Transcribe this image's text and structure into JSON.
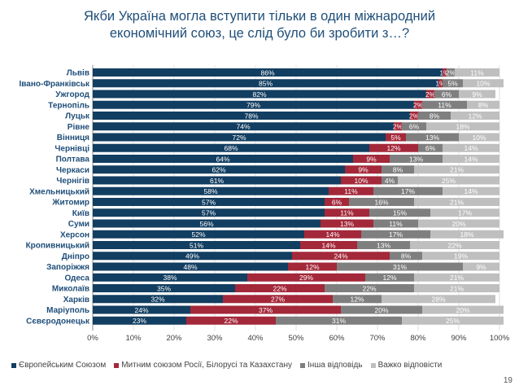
{
  "title_line1": "Якби Україна могла вступити тільки в один міжнародний",
  "title_line2": "економічний союз, це слід було би зробити з…?",
  "page_number": "19",
  "colors": {
    "eu": "#123e61",
    "customs": "#a3283a",
    "other": "#7f7f7f",
    "hard": "#bfbfbf"
  },
  "chart_data": {
    "type": "bar",
    "orientation": "horizontal",
    "stacked": true,
    "xlim": [
      0,
      100
    ],
    "x_ticks": [
      "0%",
      "10%",
      "20%",
      "30%",
      "40%",
      "50%",
      "60%",
      "70%",
      "80%",
      "90%",
      "100%"
    ],
    "grid": true,
    "legend_position": "bottom",
    "categories": [
      "Львів",
      "Івано-Франківськ",
      "Ужгород",
      "Тернопіль",
      "Луцьк",
      "Рівне",
      "Вінниця",
      "Чернівці",
      "Полтава",
      "Черкаси",
      "Чернігів",
      "Хмельницький",
      "Житомир",
      "Київ",
      "Суми",
      "Херсон",
      "Кропивницький",
      "Дніпро",
      "Запоріжжя",
      "Одеса",
      "Миколаїв",
      "Харків",
      "Маріуполь",
      "Сєвєродонецьк"
    ],
    "series": [
      {
        "name": "Європейським Союзом",
        "values": [
          86,
          85,
          82,
          79,
          78,
          74,
          72,
          68,
          64,
          62,
          61,
          58,
          57,
          57,
          56,
          52,
          51,
          49,
          48,
          38,
          35,
          32,
          24,
          23
        ]
      },
      {
        "name": "Митним союзом Росії, Білорусі та Казахстану",
        "values": [
          1,
          1,
          2,
          2,
          2,
          2,
          5,
          12,
          9,
          9,
          10,
          11,
          6,
          11,
          13,
          14,
          14,
          24,
          12,
          29,
          22,
          27,
          37,
          22
        ]
      },
      {
        "name": "Інша відповідь",
        "values": [
          2,
          5,
          6,
          11,
          8,
          6,
          13,
          6,
          13,
          8,
          4,
          17,
          16,
          15,
          11,
          17,
          13,
          8,
          31,
          12,
          22,
          12,
          20,
          31
        ]
      },
      {
        "name": "Важко відповісти",
        "values": [
          11,
          10,
          9,
          8,
          12,
          18,
          10,
          14,
          14,
          21,
          25,
          14,
          21,
          17,
          20,
          18,
          22,
          19,
          9,
          21,
          21,
          28,
          20,
          25
        ]
      }
    ]
  }
}
